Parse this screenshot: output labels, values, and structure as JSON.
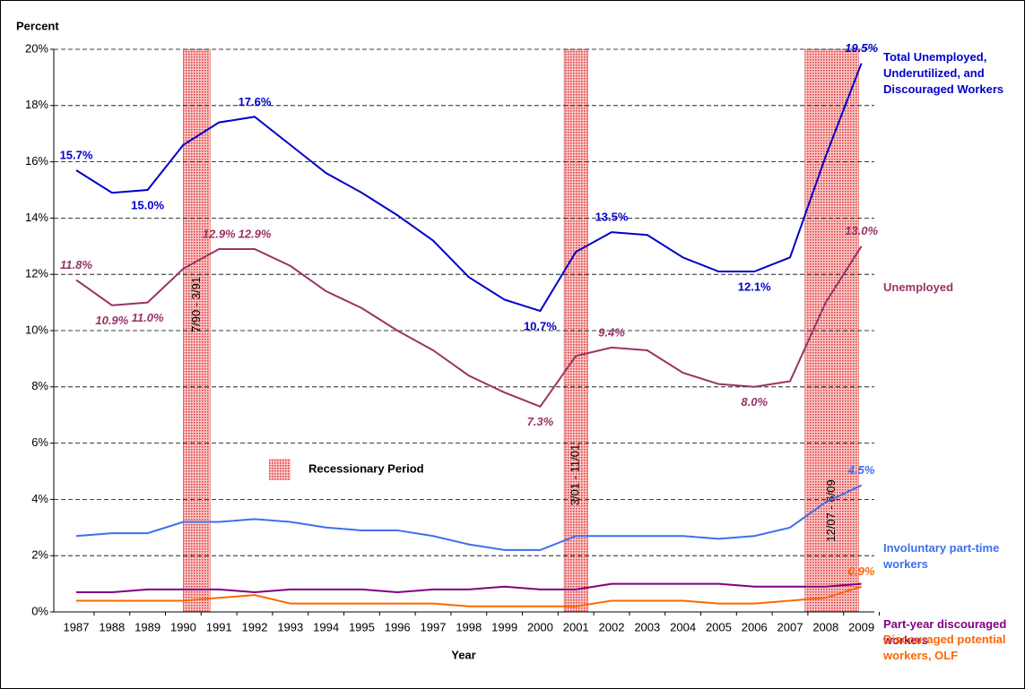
{
  "chart_data": {
    "type": "line",
    "ylabel": "Percent",
    "xlabel": "Year",
    "categories": [
      "1987",
      "1988",
      "1989",
      "1990",
      "1991",
      "1992",
      "1993",
      "1994",
      "1995",
      "1996",
      "1997",
      "1998",
      "1999",
      "2000",
      "2001",
      "2002",
      "2003",
      "2004",
      "2005",
      "2006",
      "2007",
      "2008",
      "2009"
    ],
    "ylim": [
      0,
      20
    ],
    "yticks": [
      {
        "value": 0,
        "label": "0%"
      },
      {
        "value": 2,
        "label": "2%"
      },
      {
        "value": 4,
        "label": "4%"
      },
      {
        "value": 6,
        "label": "6%"
      },
      {
        "value": 8,
        "label": "8%"
      },
      {
        "value": 10,
        "label": "10%"
      },
      {
        "value": 12,
        "label": "12%"
      },
      {
        "value": 14,
        "label": "14%"
      },
      {
        "value": 16,
        "label": "16%"
      },
      {
        "value": 18,
        "label": "18%"
      },
      {
        "value": 20,
        "label": "20%"
      }
    ],
    "grid": true,
    "series": [
      {
        "name": "Total Unemployed, Underutilized, and Discouraged Workers",
        "color": "#0000cc",
        "values": [
          15.7,
          14.9,
          15.0,
          16.6,
          17.4,
          17.6,
          16.6,
          15.6,
          14.9,
          14.1,
          13.2,
          11.9,
          11.1,
          10.7,
          12.8,
          13.5,
          13.4,
          12.6,
          12.1,
          12.1,
          12.6,
          16.2,
          19.5
        ],
        "value_labels": [
          "15.7%",
          null,
          "15.0%",
          null,
          null,
          "17.6%",
          null,
          null,
          null,
          null,
          null,
          null,
          null,
          "10.7%",
          null,
          "13.5%",
          null,
          null,
          null,
          "12.1%",
          null,
          null,
          "19.5%"
        ]
      },
      {
        "name": "Unemployed",
        "color": "#993366",
        "values": [
          11.8,
          10.9,
          11.0,
          12.2,
          12.9,
          12.9,
          12.3,
          11.4,
          10.8,
          10.0,
          9.3,
          8.4,
          7.8,
          7.3,
          9.1,
          9.4,
          9.3,
          8.5,
          8.1,
          8.0,
          8.2,
          11.0,
          13.0
        ],
        "value_labels": [
          "11.8%",
          "10.9%",
          "11.0%",
          null,
          "12.9%",
          "12.9%",
          null,
          null,
          null,
          null,
          null,
          null,
          null,
          "7.3%",
          null,
          "9.4%",
          null,
          null,
          null,
          "8.0%",
          null,
          null,
          "13.0%"
        ]
      },
      {
        "name": "Involuntary part-time workers",
        "color": "#3f6fef",
        "values": [
          2.7,
          2.8,
          2.8,
          3.2,
          3.2,
          3.3,
          3.2,
          3.0,
          2.9,
          2.9,
          2.7,
          2.4,
          2.2,
          2.2,
          2.7,
          2.7,
          2.7,
          2.7,
          2.6,
          2.7,
          3.0,
          3.9,
          4.5
        ],
        "value_labels": [
          null,
          null,
          null,
          null,
          null,
          null,
          null,
          null,
          null,
          null,
          null,
          null,
          null,
          null,
          null,
          null,
          null,
          null,
          null,
          null,
          null,
          null,
          "4.5%"
        ]
      },
      {
        "name": "Part-year discouraged workers",
        "color": "#800080",
        "values": [
          0.7,
          0.7,
          0.8,
          0.8,
          0.8,
          0.7,
          0.8,
          0.8,
          0.8,
          0.7,
          0.8,
          0.8,
          0.9,
          0.8,
          0.8,
          1.0,
          1.0,
          1.0,
          1.0,
          0.9,
          0.9,
          0.9,
          1.0
        ]
      },
      {
        "name": "Discouraged potential workers, OLF",
        "color": "#ff6600",
        "values": [
          0.4,
          0.4,
          0.4,
          0.4,
          0.5,
          0.6,
          0.3,
          0.3,
          0.3,
          0.3,
          0.3,
          0.2,
          0.2,
          0.2,
          0.2,
          0.4,
          0.4,
          0.4,
          0.3,
          0.3,
          0.4,
          0.5,
          0.9
        ],
        "value_labels": [
          null,
          null,
          null,
          null,
          null,
          null,
          null,
          null,
          null,
          null,
          null,
          null,
          null,
          null,
          null,
          null,
          null,
          null,
          null,
          null,
          null,
          null,
          "0.9%"
        ]
      }
    ],
    "recessions": [
      {
        "label": "7/90 - 3/91",
        "start": 1990.5,
        "end": 1991.25
      },
      {
        "label": "3/01 - 11/01",
        "start": 2001.17,
        "end": 2001.83
      },
      {
        "label": "12/07 - 6/09",
        "start": 2007.92,
        "end": 2009.42
      }
    ],
    "recession_legend": "Recessionary Period"
  }
}
